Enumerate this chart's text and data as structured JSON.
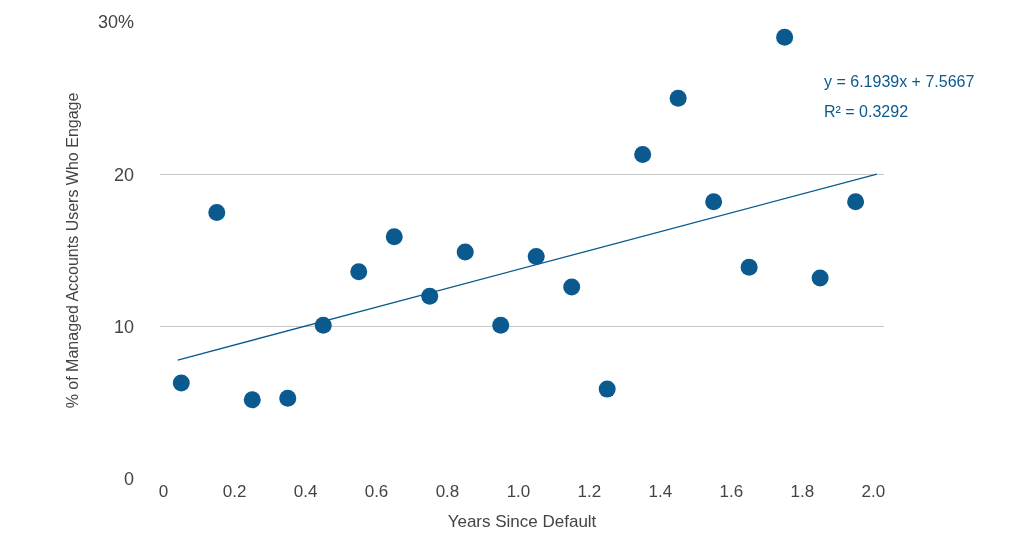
{
  "chart_data": {
    "type": "scatter",
    "xlabel": "Years Since Default",
    "ylabel": "% of Managed Accounts Users Who Engage",
    "annotations": [
      "y = 6.1939x + 7.5667",
      "R² = 0.3292"
    ],
    "series": [
      {
        "color": "#0a5a8f",
        "marker": "circle",
        "x": [
          0.05,
          0.15,
          0.25,
          0.35,
          0.45,
          0.55,
          0.65,
          0.75,
          0.85,
          0.95,
          1.05,
          1.15,
          1.25,
          1.35,
          1.45,
          1.55,
          1.65,
          1.75,
          1.85,
          1.95
        ],
        "values": [
          6.3,
          17.5,
          5.2,
          5.3,
          10.1,
          13.6,
          15.9,
          12.0,
          14.9,
          10.1,
          14.6,
          12.6,
          5.9,
          21.3,
          25.0,
          18.2,
          13.9,
          29.0,
          13.2,
          18.2
        ]
      },
      {
        "type": "line",
        "color": "#0a5a8f",
        "line_style": "solid",
        "x": [
          0.04,
          2.01
        ],
        "values": [
          7.81,
          20.02
        ]
      }
    ],
    "xlim": [
      -0.01,
      2.03
    ],
    "xticks": [
      {
        "value": 0,
        "label": "0"
      },
      0.2,
      0.4,
      0.6,
      0.8,
      {
        "value": 1,
        "label": "1.0"
      },
      1.2,
      1.4,
      1.6,
      1.8,
      {
        "value": 2,
        "label": "2.0"
      }
    ],
    "ylim": [
      0,
      30
    ],
    "yticks": [
      0,
      10,
      20,
      {
        "value": 30,
        "label": "30%"
      }
    ],
    "grid": "y"
  }
}
